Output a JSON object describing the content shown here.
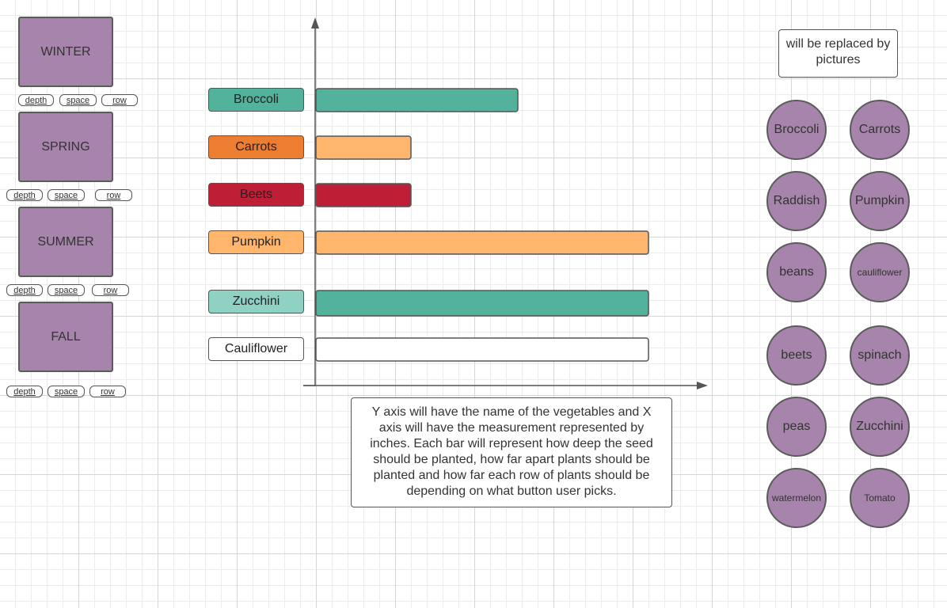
{
  "seasons": [
    {
      "label": "WINTER",
      "buttons": [
        "depth",
        "space",
        "row"
      ]
    },
    {
      "label": "SPRING",
      "buttons": [
        "depth",
        "space",
        "row"
      ]
    },
    {
      "label": "SUMMER",
      "buttons": [
        "depth",
        "space",
        "row"
      ]
    },
    {
      "label": "FALL",
      "buttons": [
        "depth",
        "space",
        "row"
      ]
    }
  ],
  "chart_data": {
    "type": "bar",
    "orientation": "horizontal",
    "categories": [
      "Broccoli",
      "Carrots",
      "Beets",
      "Pumpkin",
      "Zucchini",
      "Cauliflower"
    ],
    "values": [
      255,
      120,
      120,
      420,
      420,
      420
    ],
    "xlim": [
      0,
      490
    ],
    "title": "",
    "xlabel": "",
    "ylabel": "",
    "tick_labels_shown": false,
    "colors": {
      "label_fill": [
        "#52b29b",
        "#ed7d31",
        "#be1e36",
        "#ffb66c",
        "#8fd1c3",
        "#ffffff"
      ],
      "bar_fill": [
        "#52b29b",
        "#ffb66c",
        "#be1e36",
        "#ffb66c",
        "#52b29b",
        "#ffffff"
      ],
      "axis": "#555555"
    }
  },
  "chart_note": "Y axis will have the name of the vegetables and X axis will have the measurement represented by inches. Each bar will represent how deep the seed should be planted, how far apart plants should be planted and how far each row of plants should be depending on what button user picks.",
  "picture_note": "will be replaced by pictures",
  "picture_circles": [
    "Broccoli",
    "Carrots",
    "Raddish",
    "Pumpkin",
    "beans",
    "cauliflower",
    "beets",
    "spinach",
    "peas",
    "Zucchini",
    "watermelon",
    "Tomato"
  ]
}
